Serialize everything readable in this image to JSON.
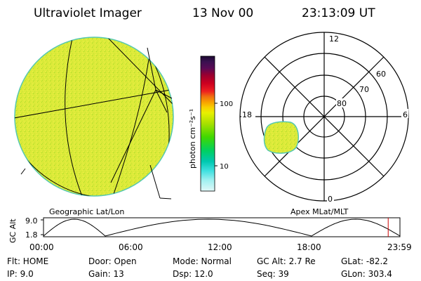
{
  "header": {
    "title": "Ultraviolet Imager",
    "date": "13 Nov 00",
    "time": "23:13:09 UT"
  },
  "left_panel": {
    "label": "Geographic Lat/Lon"
  },
  "colorbar": {
    "unit_label": "photon cm⁻²s⁻¹",
    "tick_labels": [
      "100",
      "10"
    ],
    "colors": [
      "#000000",
      "#1a0830",
      "#3a1050",
      "#5a0a55",
      "#9a0030",
      "#cc0020",
      "#ee2020",
      "#f07010",
      "#f8a000",
      "#f8d000",
      "#e8f000",
      "#a8e000",
      "#40d800",
      "#00d060",
      "#00c8b0",
      "#40e0e0",
      "#a0f0f0",
      "#e0f8f8"
    ]
  },
  "right_panel": {
    "label": "Apex MLat/MLT",
    "mlt_labels": [
      "12",
      "18",
      "6",
      "0"
    ],
    "lat_labels": [
      "60",
      "70",
      "80"
    ]
  },
  "orbit_plot": {
    "ylabel": "GC Alt",
    "ytick_labels": [
      "9.0",
      "1.8"
    ],
    "xtick_labels": [
      "00:00",
      "06:00",
      "12:00",
      "18:00",
      "23:59"
    ],
    "current_time_fraction": 0.967
  },
  "status": {
    "flt": "Flt: HOME",
    "ip": "IP:  9.0",
    "door": "Door: Open",
    "gain": "Gain: 13",
    "mode": "Mode: Normal",
    "dsp": "Dsp:    12.0",
    "gc_alt": "GC Alt: 2.7 Re",
    "seq": "Seq: 39",
    "glat": "GLat: -82.2",
    "glon": "GLon: 303.4"
  },
  "colors": {
    "image_fill": "#dcea3a",
    "image_edge": "#55c8b0",
    "marker": "#cc0000"
  }
}
